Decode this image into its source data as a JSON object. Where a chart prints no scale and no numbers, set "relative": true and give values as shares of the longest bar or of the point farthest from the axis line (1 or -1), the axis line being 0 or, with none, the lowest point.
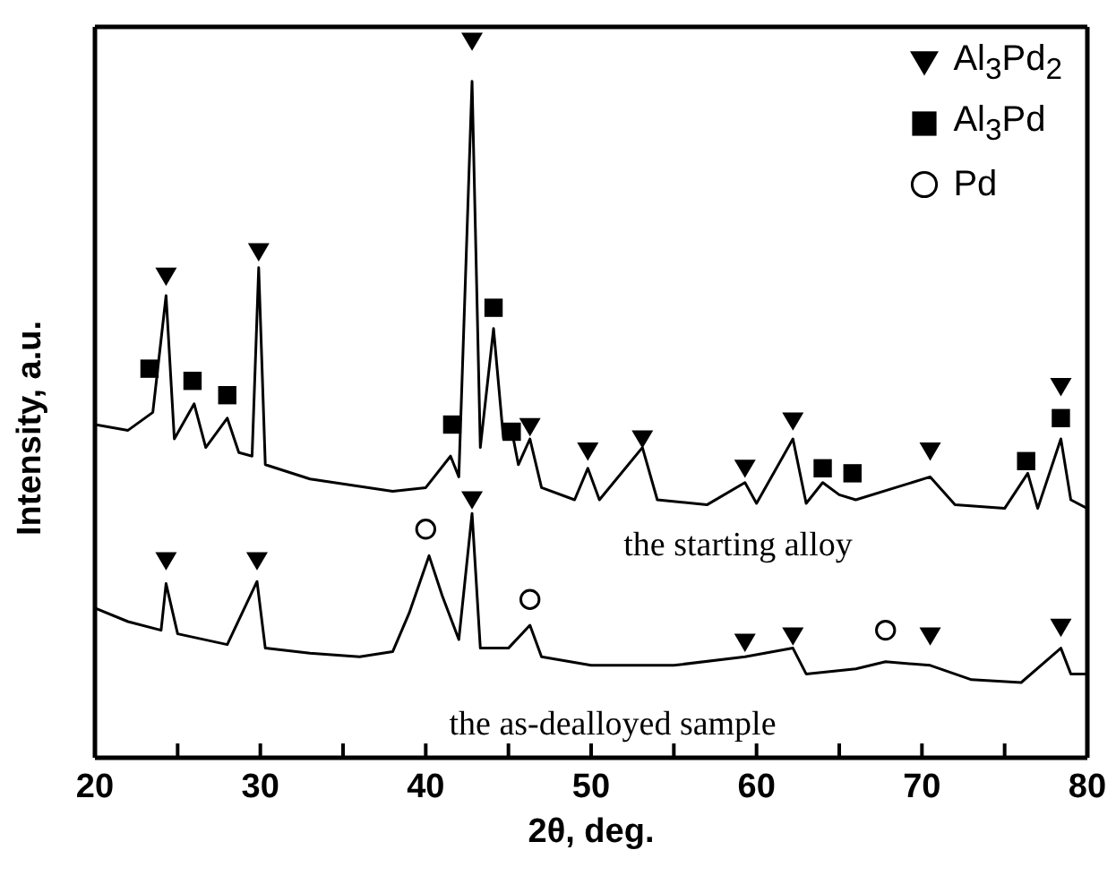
{
  "chart_data": {
    "type": "line",
    "relative": true,
    "xlabel": "2θ, deg.",
    "ylabel": "Intensity, a.u.",
    "xlim": [
      20,
      80
    ],
    "xticks": [
      20,
      {
        "value": 25,
        "label": null
      },
      30,
      {
        "value": 35,
        "label": null
      },
      40,
      {
        "value": 45,
        "label": null
      },
      50,
      {
        "value": 55,
        "label": null
      },
      60,
      {
        "value": 65,
        "label": null
      },
      70,
      {
        "value": 75,
        "label": null
      },
      80
    ],
    "grid": false,
    "legend": "top right",
    "series": [
      {
        "name": "the starting alloy",
        "color": "#000000",
        "marker": "none",
        "x": [
          20,
          22,
          23.5,
          24.3,
          24.8,
          26,
          26.7,
          28,
          28.7,
          29.5,
          29.9,
          30.3,
          33,
          38,
          40,
          41.5,
          42,
          42.8,
          43.3,
          44.1,
          44.7,
          45.2,
          45.6,
          46.3,
          47,
          49,
          49.8,
          50.5,
          53.1,
          54,
          57,
          59.3,
          60,
          62.2,
          63,
          64,
          65,
          66,
          70.5,
          72,
          75,
          76.4,
          77,
          78.4,
          79,
          80
        ],
        "values": [
          0.465,
          0.457,
          0.482,
          0.645,
          0.445,
          0.494,
          0.433,
          0.474,
          0.426,
          0.421,
          0.684,
          0.409,
          0.389,
          0.372,
          0.377,
          0.421,
          0.392,
          0.944,
          0.433,
          0.599,
          0.445,
          0.457,
          0.409,
          0.445,
          0.377,
          0.36,
          0.404,
          0.36,
          0.433,
          0.36,
          0.353,
          0.384,
          0.355,
          0.445,
          0.355,
          0.384,
          0.367,
          0.36,
          0.392,
          0.353,
          0.348,
          0.397,
          0.348,
          0.445,
          0.36,
          0.348
        ]
      },
      {
        "name": "the as-dealloyed sample",
        "color": "#000000",
        "marker": "none",
        "x": [
          20,
          22,
          24,
          24.3,
          25,
          28,
          29.8,
          30.3,
          33,
          36,
          38,
          39,
          40.2,
          41,
          42,
          42.8,
          43.3,
          45,
          46.3,
          47,
          50,
          55,
          59.3,
          62.2,
          63,
          66,
          67.8,
          70.5,
          73,
          76,
          78.4,
          79,
          80
        ],
        "values": [
          0.209,
          0.19,
          0.178,
          0.243,
          0.173,
          0.158,
          0.246,
          0.153,
          0.146,
          0.141,
          0.148,
          0.202,
          0.282,
          0.226,
          0.165,
          0.341,
          0.153,
          0.153,
          0.185,
          0.141,
          0.129,
          0.129,
          0.141,
          0.153,
          0.117,
          0.124,
          0.134,
          0.129,
          0.109,
          0.105,
          0.153,
          0.117,
          0.117
        ]
      },
      {
        "type": "scatter",
        "name": "Al$_{3}$Pd$_{2}$",
        "color": "#000000",
        "marker": "triangle",
        "x": [
          24.3,
          29.9,
          42.8,
          46.3,
          49.8,
          53.1,
          59.3,
          62.2,
          70.5,
          78.4,
          24.3,
          29.8,
          42.8,
          59.3,
          62.2,
          70.5,
          78.4
        ],
        "values": [
          0.672,
          0.706,
          1.0,
          0.462,
          0.428,
          0.445,
          0.404,
          0.47,
          0.428,
          0.518,
          0.275,
          0.275,
          0.36,
          0.161,
          0.17,
          0.17,
          0.182
        ]
      },
      {
        "type": "scatter",
        "name": "Al$_{3}$Pd",
        "color": "#000000",
        "marker": "square",
        "x": [
          23.3,
          25.9,
          28,
          41.6,
          44.1,
          45.2,
          64,
          65.8,
          76.3,
          78.4
        ],
        "values": [
          0.543,
          0.526,
          0.506,
          0.465,
          0.628,
          0.455,
          0.404,
          0.397,
          0.414,
          0.474
        ]
      },
      {
        "type": "scatter",
        "name": "Pd",
        "color": "#000000",
        "marker": "circle",
        "x": [
          40,
          46.3,
          67.8
        ],
        "values": [
          0.319,
          0.221,
          0.178
        ]
      }
    ]
  }
}
